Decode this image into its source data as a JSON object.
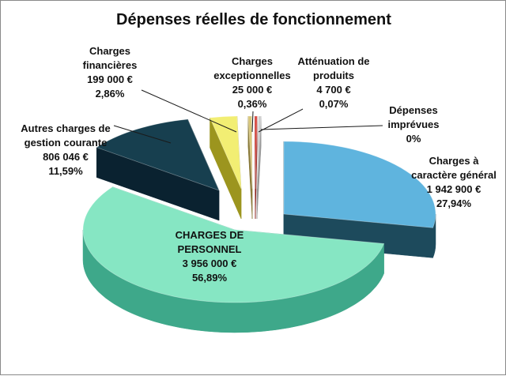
{
  "chart_data": {
    "type": "pie",
    "style": "3d-exploded",
    "title": "Dépenses réelles de fonctionnement",
    "unit": "€",
    "slices": [
      {
        "key": "charges_caractere_general",
        "lines": [
          "Charges à",
          "caractère général",
          "1 942 900 €",
          "27,94%"
        ],
        "value": 1942900,
        "percent": 27.94,
        "top_color": "#5fb4de",
        "side_color": "#1d4a5c"
      },
      {
        "key": "charges_de_personnel",
        "lines": [
          "CHARGES DE",
          "PERSONNEL",
          "3 956 000 €",
          "56,89%"
        ],
        "value": 3956000,
        "percent": 56.89,
        "top_color": "#86e6c3",
        "side_color": "#3ea88a"
      },
      {
        "key": "autres_charges_gestion_courante",
        "lines": [
          "Autres charges de",
          "gestion courante",
          "806 046 €",
          "11,59%"
        ],
        "value": 806046,
        "percent": 11.59,
        "top_color": "#173f4f",
        "side_color": "#0a2230"
      },
      {
        "key": "charges_financieres",
        "lines": [
          "Charges",
          "financières",
          "199 000 €",
          "2,86%"
        ],
        "value": 199000,
        "percent": 2.86,
        "top_color": "#f2ee73",
        "side_color": "#9c951e"
      },
      {
        "key": "charges_exceptionnelles",
        "lines": [
          "Charges",
          "exceptionnelles",
          "25 000 €",
          "0,36%"
        ],
        "value": 25000,
        "percent": 0.36,
        "top_color": "#d9c77a",
        "side_color": "#8a7a3a"
      },
      {
        "key": "attenuation_de_produits",
        "lines": [
          "Atténuation de",
          "produits",
          "4 700 €",
          "0,07%"
        ],
        "value": 4700,
        "percent": 0.07,
        "top_color": "#d9443b",
        "side_color": "#8a1f1a"
      },
      {
        "key": "depenses_imprevues",
        "lines": [
          "Dépenses",
          "imprévues",
          "0%"
        ],
        "value": 0,
        "percent": 0,
        "top_color": "#cccccc",
        "side_color": "#999999"
      }
    ]
  }
}
